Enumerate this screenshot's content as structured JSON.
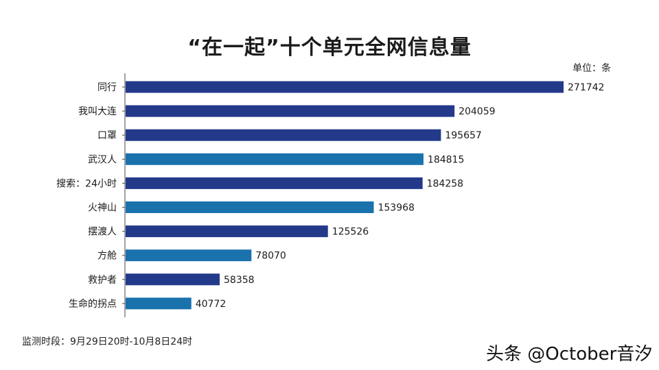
{
  "chart_data": {
    "type": "bar",
    "orientation": "horizontal",
    "title": "“在一起”十个单元全网信息量",
    "unit_label": "单位：条",
    "categories": [
      "同行",
      "我叫大连",
      "口罩",
      "武汉人",
      "搜索：24小时",
      "火神山",
      "摆渡人",
      "方舱",
      "救护者",
      "生命的拐点"
    ],
    "values": [
      271742,
      204059,
      195657,
      184815,
      184258,
      153968,
      125526,
      78070,
      58358,
      40772
    ],
    "bar_colors": [
      "#23398a",
      "#23398a",
      "#23398a",
      "#1a72ad",
      "#23398a",
      "#1a72ad",
      "#23398a",
      "#1a72ad",
      "#23398a",
      "#1a72ad"
    ],
    "xlim": [
      0,
      300000
    ],
    "grid": false,
    "legend": "none"
  },
  "footer": {
    "period": "监测时段：9月29日20时-10月8日24时"
  },
  "watermark": {
    "text": "头条 @October音汐"
  },
  "colors": {
    "dark_bar": "#23398a",
    "light_bar": "#1a72ad",
    "axis": "#444444"
  }
}
